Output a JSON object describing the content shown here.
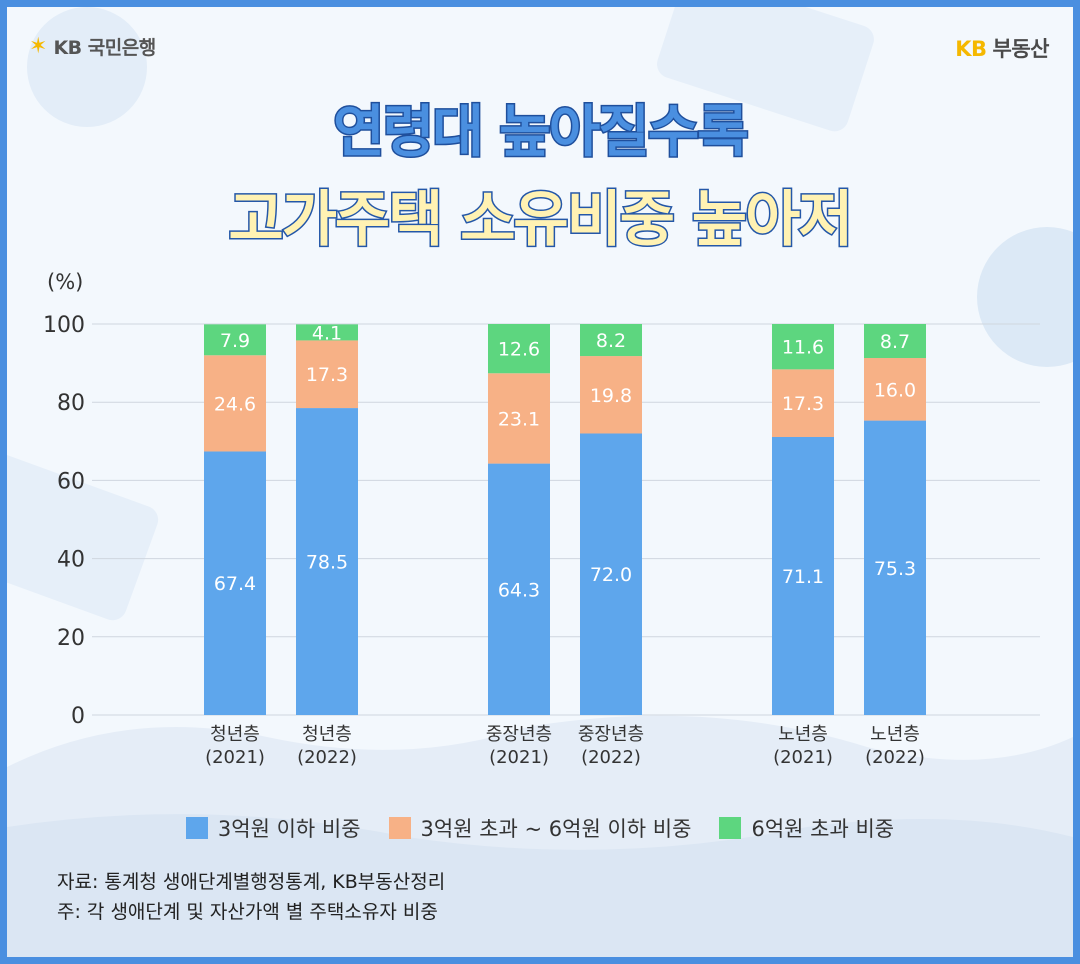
{
  "header": {
    "logo_left_icon": "kb-star-icon",
    "logo_left": "KB 국민은행",
    "logo_right_brand": "KB",
    "logo_right_name": "부동산"
  },
  "title": {
    "line1": "연령대 높아질수록",
    "line2": "고가주택 소유비중 높아저"
  },
  "chart_data": {
    "type": "bar",
    "stacked": true,
    "unit_label": "(%)",
    "ylim": [
      0,
      100
    ],
    "yticks": [
      0,
      20,
      40,
      60,
      80,
      100
    ],
    "grid": true,
    "categories": [
      [
        "청년층",
        "(2021)"
      ],
      [
        "청년층",
        "(2022)"
      ],
      [
        "중장년층",
        "(2021)"
      ],
      [
        "중장년층",
        "(2022)"
      ],
      [
        "노년층",
        "(2021)"
      ],
      [
        "노년층",
        "(2022)"
      ]
    ],
    "series": [
      {
        "name": "3억원 이하 비중",
        "color": "#5ea6ec",
        "values": [
          67.4,
          78.5,
          64.3,
          72.0,
          71.1,
          75.3
        ],
        "labels": [
          "67.4",
          "78.5",
          "64.3",
          "72.0",
          "71.1",
          "75.3"
        ]
      },
      {
        "name": "3억원 초과 ~ 6억원 이하 비중",
        "color": "#f7b186",
        "values": [
          24.6,
          17.3,
          23.1,
          19.8,
          17.3,
          16.0
        ],
        "labels": [
          "24.6",
          "17.3",
          "23.1",
          "19.8",
          "17.3",
          "16.0"
        ]
      },
      {
        "name": "6억원 초과 비중",
        "color": "#5dd67f",
        "values": [
          7.9,
          4.1,
          12.6,
          8.2,
          11.6,
          8.7
        ],
        "labels": [
          "7.9",
          "4.1",
          "12.6",
          "8.2",
          "11.6",
          "8.7"
        ]
      }
    ],
    "legend_position": "bottom"
  },
  "source": {
    "line1": "자료: 통계청 생애단계별행정통계, KB부동산정리",
    "line2": "주: 각 생애단계 및 자산가액 별 주택소유자 비중"
  }
}
